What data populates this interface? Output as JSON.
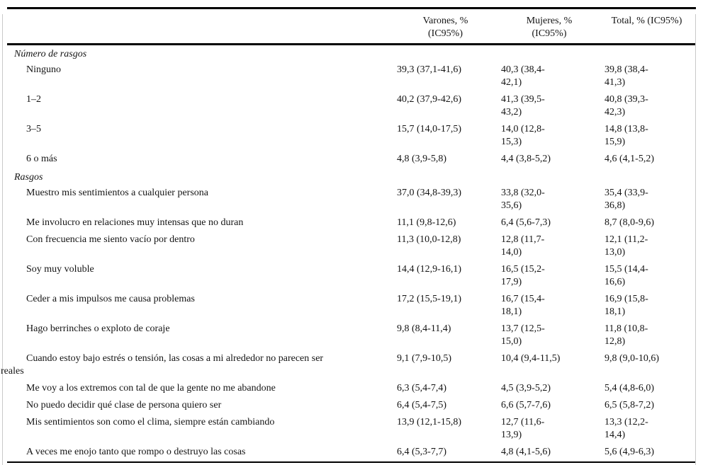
{
  "header": {
    "label_col": "",
    "varones": "Varones, %\n(IC95%)",
    "mujeres": "Mujeres, %\n(IC95%)",
    "total": "Total, % (IC95%)"
  },
  "rows": [
    {
      "type": "section",
      "label": "Número de rasgos"
    },
    {
      "type": "item",
      "label": "Ninguno",
      "varones": "39,3 (37,1-41,6)",
      "mujeres": "40,3 (38,4-\n42,1)",
      "total": "39,8 (38,4-\n41,3)"
    },
    {
      "type": "item",
      "label": "1–2",
      "varones": "40,2 (37,9-42,6)",
      "mujeres": "41,3 (39,5-\n43,2)",
      "total": "40,8 (39,3-\n42,3)"
    },
    {
      "type": "item",
      "label": "3–5",
      "varones": "15,7 (14,0-17,5)",
      "mujeres": "14,0 (12,8-\n15,3)",
      "total": "14,8 (13,8-\n15,9)"
    },
    {
      "type": "item",
      "label": "6 o más",
      "varones": "4,8 (3,9-5,8)",
      "mujeres": "4,4 (3,8-5,2)",
      "total": "4,6 (4,1-5,2)"
    },
    {
      "type": "section",
      "label": "Rasgos"
    },
    {
      "type": "item",
      "label": "Muestro mis sentimientos a cualquier persona",
      "varones": "37,0 (34,8-39,3)",
      "mujeres": "33,8 (32,0-\n35,6)",
      "total": "35,4 (33,9-\n36,8)"
    },
    {
      "type": "item",
      "label": "Me involucro en relaciones muy intensas que no duran",
      "varones": "11,1 (9,8-12,6)",
      "mujeres": "6,4 (5,6-7,3)",
      "total": "8,7 (8,0-9,6)"
    },
    {
      "type": "item",
      "label": "Con frecuencia me siento vacío por dentro",
      "varones": "11,3 (10,0-12,8)",
      "mujeres": "12,8 (11,7-\n14,0)",
      "total": "12,1 (11,2-\n13,0)"
    },
    {
      "type": "item",
      "label": "Soy muy voluble",
      "varones": "14,4 (12,9-16,1)",
      "mujeres": "16,5 (15,2-\n17,9)",
      "total": "15,5 (14,4-\n16,6)"
    },
    {
      "type": "item",
      "label": "Ceder a mis impulsos me causa problemas",
      "varones": "17,2 (15,5-19,1)",
      "mujeres": "16,7 (15,4-\n18,1)",
      "total": "16,9 (15,8-\n18,1)"
    },
    {
      "type": "item",
      "label": "Hago berrinches o exploto de coraje",
      "varones": "9,8 (8,4-11,4)",
      "mujeres": "13,7 (12,5-\n15,0)",
      "total": "11,8 (10,8-\n12,8)"
    },
    {
      "type": "item",
      "label": "Cuando estoy bajo estrés o tensión, las cosas a mi alrededor no parecen ser\nreales",
      "varones": "9,1 (7,9-10,5)",
      "mujeres": "10,4 (9,4-11,5)",
      "total": "9,8 (9,0-10,6)"
    },
    {
      "type": "item",
      "label": "Me voy a los extremos con tal de que la gente no me abandone",
      "varones": "6,3 (5,4-7,4)",
      "mujeres": "4,5 (3,9-5,2)",
      "total": "5,4 (4,8-6,0)"
    },
    {
      "type": "item",
      "label": "No puedo decidir qué clase de persona quiero ser",
      "varones": "6,4 (5,4-7,5)",
      "mujeres": "6,6 (5,7-7,6)",
      "total": "6,5 (5,8-7,2)"
    },
    {
      "type": "item",
      "label": "Mis sentimientos son como el clima, siempre están cambiando",
      "varones": "13,9 (12,1-15,8)",
      "mujeres": "12,7 (11,6-\n13,9)",
      "total": "13,3 (12,2-\n14,4)"
    },
    {
      "type": "item",
      "label": "A veces me enojo tanto que rompo o destruyo las cosas",
      "varones": "6,4 (5,3-7,7)",
      "mujeres": "4,8 (4,1-5,6)",
      "total": "5,6 (4,9-6,3)"
    }
  ]
}
